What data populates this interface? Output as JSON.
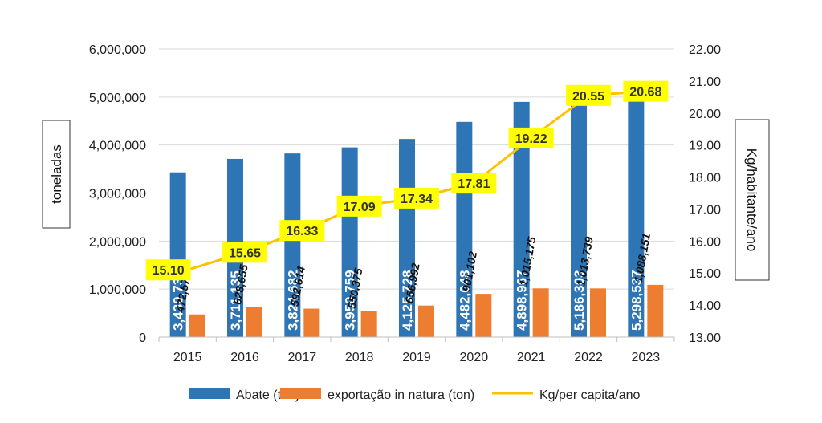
{
  "chart_data": {
    "type": "bar",
    "title": "",
    "categories": [
      "2015",
      "2016",
      "2017",
      "2018",
      "2019",
      "2020",
      "2021",
      "2022",
      "2023"
    ],
    "series": [
      {
        "name": "Abate (ton)",
        "axis": "left",
        "kind": "bar",
        "color": "#2e75b6",
        "values": [
          3430734,
          3711135,
          3824682,
          3950759,
          4125728,
          4482048,
          4898967,
          5186303,
          5298537
        ],
        "labels": [
          "3,430,734",
          "3,711,135",
          "3,824,682",
          "3,950,759",
          "4,125,728",
          "4,482,048",
          "4,898,967",
          "5,186,303",
          "5,298,537"
        ]
      },
      {
        "name": "exportação in natura (ton)",
        "axis": "left",
        "kind": "bar",
        "color": "#ed7d31",
        "values": [
          472578,
          628655,
          592614,
          550375,
          656992,
          901102,
          1015175,
          1013739,
          1088151
        ],
        "labels": [
          "472,578",
          "628,655",
          "592,614",
          "550,375",
          "656,992",
          "901,102",
          "1,015,175",
          "1,013,739",
          "1,088,151"
        ]
      },
      {
        "name": "Kg/per capita/ano",
        "axis": "right",
        "kind": "line",
        "color": "#ffc000",
        "values": [
          15.1,
          15.65,
          16.33,
          17.09,
          17.34,
          17.81,
          19.22,
          20.55,
          20.68
        ],
        "labels": [
          "15.10",
          "15.65",
          "16.33",
          "17.09",
          "17.34",
          "17.81",
          "19.22",
          "20.55",
          "20.68"
        ]
      }
    ],
    "ylabel": "toneladas",
    "y2label": "Kg/habitante/ano",
    "ylim": [
      0,
      6000000
    ],
    "y2lim": [
      13,
      22
    ],
    "yticks": [
      "0",
      "1,000,000",
      "2,000,000",
      "3,000,000",
      "4,000,000",
      "5,000,000",
      "6,000,000"
    ],
    "y2ticks": [
      "13.00",
      "14.00",
      "15.00",
      "16.00",
      "17.00",
      "18.00",
      "19.00",
      "20.00",
      "21.00",
      "22.00"
    ],
    "grid": true,
    "legend_position": "bottom",
    "label_box_color": "#ffff00"
  }
}
